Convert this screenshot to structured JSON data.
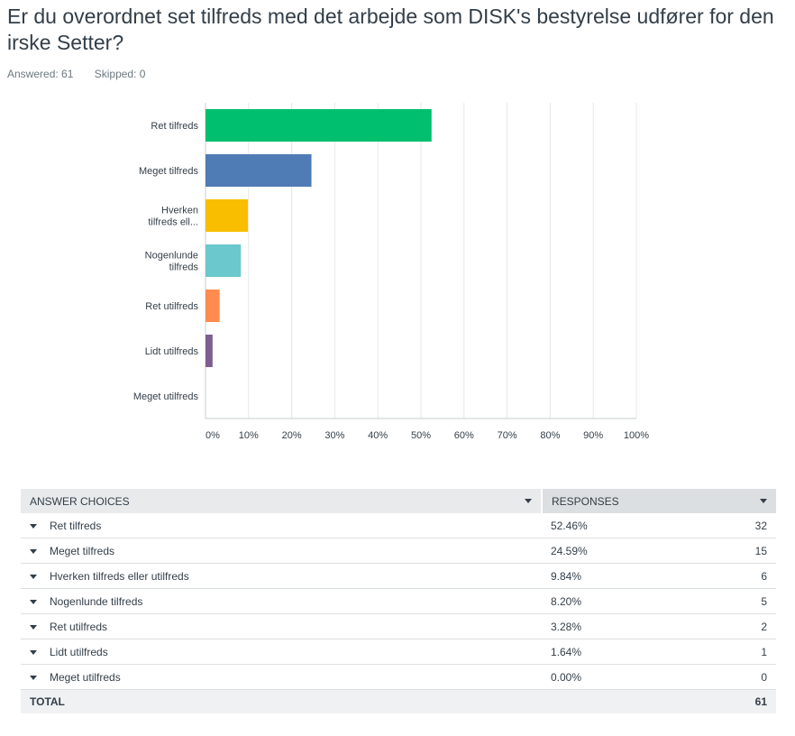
{
  "question": {
    "title": "Er du overordnet set tilfreds med det arbejde som DISK's bestyrelse udfører for den irske Setter?",
    "answered": "Answered: 61",
    "skipped": "Skipped: 0"
  },
  "chart_data": {
    "type": "bar",
    "orientation": "horizontal",
    "categories": [
      [
        "Ret tilfreds"
      ],
      [
        "Meget tilfreds"
      ],
      [
        "Hverken",
        "tilfreds ell..."
      ],
      [
        "Nogenlunde",
        "tilfreds"
      ],
      [
        "Ret utilfreds"
      ],
      [
        "Lidt utilfreds"
      ],
      [
        "Meget utilfreds"
      ]
    ],
    "values": [
      52.46,
      24.59,
      9.84,
      8.2,
      3.28,
      1.64,
      0.0
    ],
    "colors": [
      "#00bf6f",
      "#507cb6",
      "#f9be00",
      "#6bc8cd",
      "#ff8b4f",
      "#7d5e90",
      "#d25f90"
    ],
    "xlim": [
      0,
      100
    ],
    "ticks": [
      "0%",
      "10%",
      "20%",
      "30%",
      "40%",
      "50%",
      "60%",
      "70%",
      "80%",
      "90%",
      "100%"
    ],
    "grid": true
  },
  "table": {
    "headers": {
      "choices": "ANSWER CHOICES",
      "responses": "RESPONSES"
    },
    "rows": [
      {
        "label": "Ret tilfreds",
        "pct": "52.46%",
        "count": "32"
      },
      {
        "label": "Meget tilfreds",
        "pct": "24.59%",
        "count": "15"
      },
      {
        "label": "Hverken tilfreds eller utilfreds",
        "pct": "9.84%",
        "count": "6"
      },
      {
        "label": "Nogenlunde tilfreds",
        "pct": "8.20%",
        "count": "5"
      },
      {
        "label": "Ret utilfreds",
        "pct": "3.28%",
        "count": "2"
      },
      {
        "label": "Lidt utilfreds",
        "pct": "1.64%",
        "count": "1"
      },
      {
        "label": "Meget utilfreds",
        "pct": "0.00%",
        "count": "0"
      }
    ],
    "total": {
      "label": "TOTAL",
      "count": "61"
    }
  }
}
